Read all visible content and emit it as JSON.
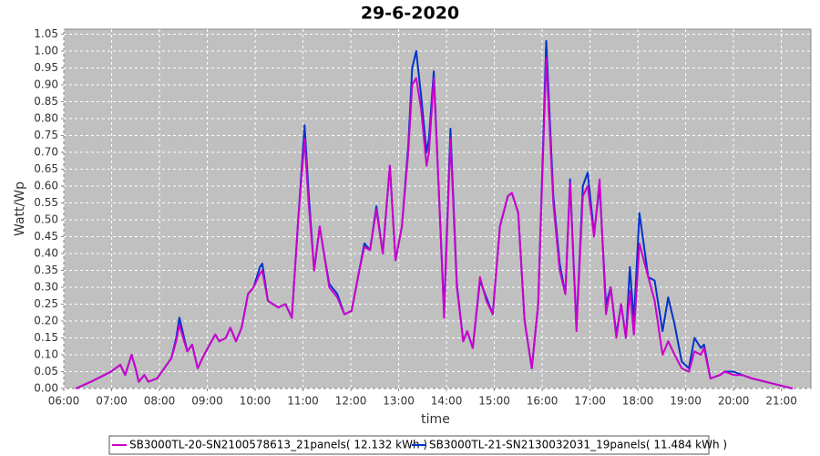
{
  "chart_data": {
    "type": "line",
    "title": "29-6-2020",
    "xlabel": "time",
    "ylabel": "Watt/Wp",
    "x": [
      "06:15",
      "06:34",
      "06:51",
      "06:59",
      "07:05",
      "07:11",
      "07:17",
      "07:25",
      "07:30",
      "07:34",
      "07:41",
      "07:46",
      "07:57",
      "08:06",
      "08:15",
      "08:21",
      "08:25",
      "08:31",
      "08:35",
      "08:41",
      "08:48",
      "08:56",
      "09:03",
      "09:10",
      "09:15",
      "09:23",
      "09:29",
      "09:36",
      "09:43",
      "09:51",
      "09:58",
      "10:06",
      "10:09",
      "10:16",
      "10:29",
      "10:38",
      "10:46",
      "10:54",
      "11:02",
      "11:07",
      "11:14",
      "11:21",
      "11:27",
      "11:33",
      "11:43",
      "11:52",
      "12:01",
      "12:09",
      "12:17",
      "12:24",
      "12:32",
      "12:40",
      "12:49",
      "12:56",
      "13:04",
      "13:12",
      "13:17",
      "13:22",
      "13:28",
      "13:35",
      "13:38",
      "13:44",
      "13:51",
      "13:57",
      "14:05",
      "14:13",
      "14:21",
      "14:26",
      "14:33",
      "14:42",
      "14:50",
      "14:58",
      "15:07",
      "15:17",
      "15:22",
      "15:30",
      "15:38",
      "15:47",
      "15:55",
      "16:05",
      "16:14",
      "16:22",
      "16:29",
      "16:35",
      "16:43",
      "16:51",
      "16:57",
      "17:05",
      "17:12",
      "17:20",
      "17:26",
      "17:33",
      "17:39",
      "17:45",
      "17:50",
      "17:55",
      "18:02",
      "18:13",
      "18:21",
      "18:31",
      "18:38",
      "18:46",
      "18:55",
      "19:04",
      "19:11",
      "19:19",
      "19:23",
      "19:31",
      "19:43",
      "19:49",
      "20:00",
      "20:11",
      "20:23",
      "20:40",
      "20:57",
      "21:14"
    ],
    "series": [
      {
        "name": "SB3000TL-20-SN2100578613_21panels( 12.132 kWh )",
        "color": "#cc00cc",
        "values": [
          0.0,
          0.02,
          0.04,
          0.05,
          0.06,
          0.07,
          0.04,
          0.1,
          0.06,
          0.02,
          0.04,
          0.02,
          0.03,
          0.06,
          0.09,
          0.14,
          0.19,
          0.14,
          0.11,
          0.13,
          0.06,
          0.1,
          0.13,
          0.16,
          0.14,
          0.15,
          0.18,
          0.14,
          0.18,
          0.28,
          0.3,
          0.34,
          0.35,
          0.26,
          0.24,
          0.25,
          0.21,
          0.5,
          0.74,
          0.55,
          0.35,
          0.48,
          0.39,
          0.3,
          0.27,
          0.22,
          0.23,
          0.33,
          0.42,
          0.41,
          0.53,
          0.4,
          0.66,
          0.38,
          0.48,
          0.7,
          0.9,
          0.92,
          0.83,
          0.66,
          0.7,
          0.92,
          0.55,
          0.21,
          0.74,
          0.3,
          0.14,
          0.17,
          0.12,
          0.33,
          0.26,
          0.22,
          0.48,
          0.57,
          0.58,
          0.52,
          0.2,
          0.06,
          0.25,
          0.98,
          0.55,
          0.35,
          0.28,
          0.61,
          0.17,
          0.57,
          0.6,
          0.45,
          0.62,
          0.22,
          0.3,
          0.15,
          0.25,
          0.15,
          0.29,
          0.16,
          0.43,
          0.33,
          0.26,
          0.1,
          0.14,
          0.1,
          0.06,
          0.05,
          0.11,
          0.1,
          0.12,
          0.03,
          0.04,
          0.05,
          0.04,
          0.04,
          0.03,
          0.02,
          0.01,
          0.0
        ]
      },
      {
        "name": "SB3000TL-21-SN2130032031_19panels( 11.484 kWh )",
        "color": "#0033cc",
        "values": [
          0.0,
          0.02,
          0.04,
          0.05,
          0.06,
          0.07,
          0.04,
          0.1,
          0.06,
          0.02,
          0.04,
          0.02,
          0.03,
          0.06,
          0.09,
          0.15,
          0.21,
          0.15,
          0.11,
          0.13,
          0.06,
          0.1,
          0.13,
          0.16,
          0.14,
          0.15,
          0.18,
          0.14,
          0.18,
          0.28,
          0.3,
          0.36,
          0.37,
          0.26,
          0.24,
          0.25,
          0.21,
          0.5,
          0.78,
          0.58,
          0.35,
          0.48,
          0.39,
          0.31,
          0.28,
          0.22,
          0.23,
          0.33,
          0.43,
          0.41,
          0.54,
          0.4,
          0.66,
          0.38,
          0.48,
          0.72,
          0.95,
          1.0,
          0.87,
          0.7,
          0.74,
          0.94,
          0.55,
          0.23,
          0.77,
          0.31,
          0.14,
          0.17,
          0.12,
          0.32,
          0.27,
          0.22,
          0.48,
          0.57,
          0.58,
          0.52,
          0.2,
          0.06,
          0.25,
          1.03,
          0.57,
          0.37,
          0.28,
          0.62,
          0.18,
          0.6,
          0.64,
          0.46,
          0.6,
          0.25,
          0.3,
          0.16,
          0.25,
          0.15,
          0.36,
          0.2,
          0.52,
          0.33,
          0.32,
          0.17,
          0.27,
          0.19,
          0.08,
          0.06,
          0.15,
          0.12,
          0.13,
          0.03,
          0.04,
          0.05,
          0.05,
          0.04,
          0.03,
          0.02,
          0.01,
          0.0
        ]
      }
    ],
    "xlim": [
      "06:00",
      "21:37"
    ],
    "xticks": [
      "06:00",
      "07:00",
      "08:00",
      "09:00",
      "10:00",
      "11:00",
      "12:00",
      "13:00",
      "14:00",
      "15:00",
      "16:00",
      "17:00",
      "18:00",
      "19:00",
      "20:00",
      "21:00"
    ],
    "ylim": [
      0,
      1.065
    ],
    "yticks": [
      {
        "value": 0,
        "label": "0.00"
      },
      0.05,
      {
        "value": 0.1,
        "label": "0.10"
      },
      0.15,
      {
        "value": 0.2,
        "label": "0.20"
      },
      0.25,
      {
        "value": 0.3,
        "label": "0.30"
      },
      0.35,
      {
        "value": 0.4,
        "label": "0.40"
      },
      0.45,
      {
        "value": 0.5,
        "label": "0.50"
      },
      0.55,
      {
        "value": 0.6,
        "label": "0.60"
      },
      0.65,
      {
        "value": 0.7,
        "label": "0.70"
      },
      0.75,
      {
        "value": 0.8,
        "label": "0.80"
      },
      0.85,
      {
        "value": 0.9,
        "label": "0.90"
      },
      0.95,
      {
        "value": 1,
        "label": "1.00"
      },
      1.05
    ],
    "grid": true,
    "legend": "bottom"
  }
}
